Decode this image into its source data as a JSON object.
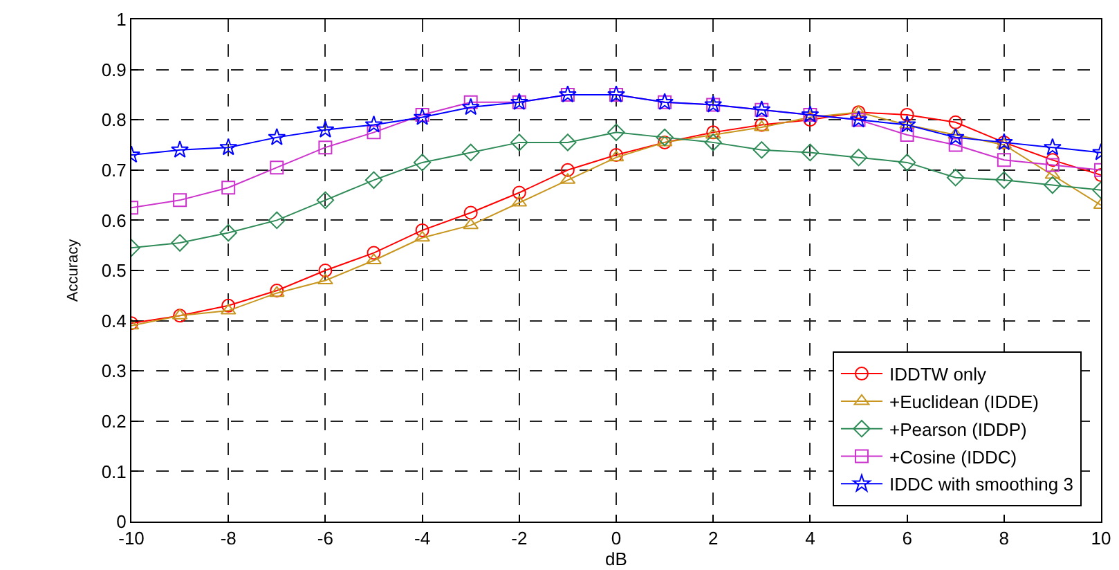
{
  "chart_data": {
    "type": "line",
    "xlabel": "dB",
    "ylabel": "Accuracy",
    "x": [
      -10,
      -9,
      -8,
      -7,
      -6,
      -5,
      -4,
      -3,
      -2,
      -1,
      0,
      1,
      2,
      3,
      4,
      5,
      6,
      7,
      8,
      9,
      10
    ],
    "xlim": [
      -10,
      10
    ],
    "xticks": [
      -10,
      -8,
      -6,
      -4,
      -2,
      0,
      2,
      4,
      6,
      8,
      10
    ],
    "ylim": [
      0,
      1
    ],
    "yticks": [
      0,
      0.1,
      0.2,
      0.3,
      0.4,
      0.5,
      0.6,
      0.7,
      0.8,
      0.9,
      1
    ],
    "grid": true,
    "legend": "bottom right",
    "line_style": "solid",
    "series": [
      {
        "name": "IDDTW only",
        "color": "#ff0000",
        "marker": "circle",
        "values": [
          0.395,
          0.41,
          0.43,
          0.46,
          0.5,
          0.535,
          0.58,
          0.615,
          0.655,
          0.7,
          0.73,
          0.755,
          0.775,
          0.79,
          0.8,
          0.815,
          0.81,
          0.795,
          0.755,
          0.72,
          0.69
        ]
      },
      {
        "name": "+Euclidean (IDDE)",
        "color": "#c8961e",
        "marker": "triangle",
        "values": [
          0.39,
          0.41,
          0.42,
          0.455,
          0.48,
          0.52,
          0.565,
          0.59,
          0.635,
          0.68,
          0.725,
          0.755,
          0.77,
          0.785,
          0.805,
          0.815,
          0.79,
          0.77,
          0.75,
          0.69,
          0.63
        ]
      },
      {
        "name": "+Pearson (IDDP)",
        "color": "#2e8b57",
        "marker": "diamond",
        "values": [
          0.545,
          0.555,
          0.575,
          0.6,
          0.64,
          0.68,
          0.715,
          0.735,
          0.755,
          0.755,
          0.775,
          0.765,
          0.755,
          0.74,
          0.735,
          0.725,
          0.715,
          0.685,
          0.68,
          0.67,
          0.66
        ]
      },
      {
        "name": "+Cosine (IDDC)",
        "color": "#cc33cc",
        "marker": "square",
        "values": [
          0.625,
          0.64,
          0.665,
          0.705,
          0.745,
          0.775,
          0.81,
          0.835,
          0.835,
          0.85,
          0.85,
          0.835,
          0.83,
          0.82,
          0.81,
          0.8,
          0.77,
          0.75,
          0.72,
          0.71,
          0.7
        ]
      },
      {
        "name": "IDDC with smoothing 3",
        "color": "#0000ff",
        "marker": "star",
        "values": [
          0.73,
          0.74,
          0.745,
          0.765,
          0.78,
          0.79,
          0.805,
          0.825,
          0.835,
          0.85,
          0.85,
          0.835,
          0.83,
          0.82,
          0.81,
          0.8,
          0.79,
          0.765,
          0.755,
          0.745,
          0.735
        ]
      }
    ]
  }
}
